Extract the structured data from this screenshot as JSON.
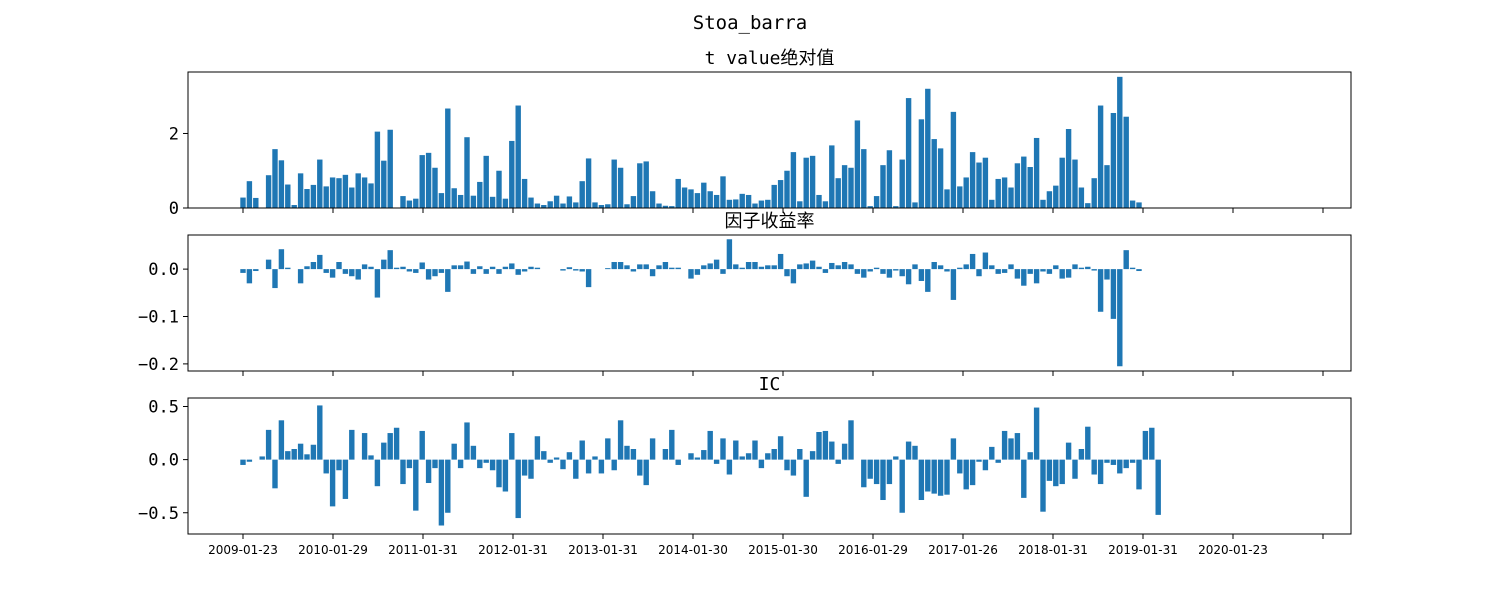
{
  "figure_title": "Stoa_barra",
  "bar_color": "#1f77b4",
  "chart_data": [
    {
      "type": "bar",
      "title": "t value绝对值",
      "xlabel": "",
      "ylabel": "",
      "ylim": [
        0,
        3.65
      ],
      "yticks": [
        0,
        2
      ],
      "yticklabels": [
        "0",
        "2"
      ],
      "values": [
        0.28,
        0.72,
        0.27,
        0.01,
        0.88,
        1.58,
        1.28,
        0.63,
        0.08,
        0.93,
        0.51,
        0.62,
        1.3,
        0.58,
        0.82,
        0.8,
        0.89,
        0.55,
        0.93,
        0.82,
        0.66,
        2.05,
        1.27,
        2.1,
        0.01,
        0.32,
        0.2,
        0.25,
        1.42,
        1.48,
        1.08,
        0.4,
        2.67,
        0.53,
        0.35,
        1.9,
        0.33,
        0.7,
        1.4,
        0.3,
        1.0,
        0.25,
        1.8,
        2.75,
        0.78,
        0.28,
        0.12,
        0.08,
        0.18,
        0.33,
        0.12,
        0.31,
        0.15,
        0.72,
        1.33,
        0.15,
        0.08,
        0.1,
        1.3,
        1.08,
        0.1,
        0.32,
        1.2,
        1.25,
        0.45,
        0.12,
        0.06,
        0.05,
        0.78,
        0.55,
        0.5,
        0.4,
        0.68,
        0.45,
        0.35,
        0.85,
        0.22,
        0.23,
        0.38,
        0.35,
        0.12,
        0.2,
        0.22,
        0.62,
        0.75,
        1.0,
        1.5,
        0.18,
        1.35,
        1.4,
        0.35,
        0.18,
        1.68,
        0.8,
        1.15,
        1.08,
        2.35,
        1.58,
        0.05,
        0.32,
        1.15,
        1.55,
        0.05,
        1.3,
        2.95,
        0.15,
        2.38,
        3.2,
        1.85,
        1.6,
        0.5,
        2.58,
        0.58,
        0.82,
        1.5,
        1.22,
        1.35,
        0.22,
        0.78,
        0.82,
        0.55,
        1.2,
        1.38,
        1.1,
        1.88,
        0.22,
        0.45,
        0.6,
        1.35,
        2.12,
        1.3,
        0.55,
        0.13,
        0.8,
        2.75,
        1.15,
        2.55,
        3.52,
        2.45,
        0.2,
        0.15
      ]
    },
    {
      "type": "bar",
      "title": "因子收益率",
      "xlabel": "",
      "ylabel": "",
      "ylim": [
        -0.215,
        0.072
      ],
      "yticks": [
        0.0,
        -0.1,
        -0.2
      ],
      "yticklabels": [
        "0.0",
        "−0.1",
        "−0.2"
      ],
      "values": [
        -0.008,
        -0.03,
        -0.004,
        0.0,
        0.02,
        -0.04,
        0.042,
        0.003,
        0.0,
        -0.03,
        0.006,
        0.015,
        0.03,
        -0.008,
        -0.018,
        0.015,
        -0.01,
        -0.015,
        -0.022,
        0.01,
        0.005,
        -0.06,
        0.02,
        0.04,
        0.003,
        0.005,
        -0.005,
        -0.008,
        0.014,
        -0.022,
        -0.015,
        -0.008,
        -0.048,
        0.008,
        0.008,
        0.016,
        -0.01,
        0.006,
        -0.01,
        0.005,
        -0.01,
        0.005,
        0.012,
        -0.012,
        -0.005,
        0.005,
        0.003,
        0.0,
        0.0,
        0.0,
        -0.003,
        0.004,
        -0.003,
        -0.005,
        -0.038,
        0.0,
        0.0,
        0.002,
        0.015,
        0.015,
        0.008,
        -0.005,
        0.01,
        0.01,
        -0.015,
        0.008,
        0.015,
        0.003,
        0.003,
        0.0,
        -0.02,
        -0.012,
        0.008,
        0.012,
        0.02,
        -0.01,
        0.063,
        0.01,
        0.003,
        0.015,
        0.015,
        0.005,
        0.008,
        0.008,
        0.032,
        -0.015,
        -0.03,
        0.01,
        0.012,
        0.018,
        0.005,
        -0.008,
        0.013,
        0.008,
        0.015,
        0.01,
        -0.01,
        -0.018,
        -0.005,
        0.003,
        -0.01,
        -0.018,
        -0.003,
        -0.015,
        -0.032,
        0.01,
        -0.025,
        -0.048,
        0.015,
        0.008,
        -0.005,
        -0.065,
        0.003,
        0.01,
        0.032,
        -0.015,
        0.035,
        0.008,
        -0.01,
        -0.008,
        0.01,
        -0.02,
        -0.035,
        -0.01,
        -0.03,
        -0.005,
        -0.01,
        0.008,
        -0.02,
        -0.018,
        0.01,
        0.003,
        0.005,
        -0.003,
        -0.09,
        -0.022,
        -0.105,
        -0.205,
        0.04,
        0.003,
        -0.004
      ]
    },
    {
      "type": "bar",
      "title": "IC",
      "xlabel": "",
      "ylabel": "",
      "ylim": [
        -0.7,
        0.58
      ],
      "yticks": [
        0.5,
        0.0,
        -0.5
      ],
      "yticklabels": [
        "0.5",
        "0.0",
        "−0.5"
      ],
      "values": [
        -0.05,
        -0.02,
        0.0,
        0.03,
        0.28,
        -0.27,
        0.37,
        0.08,
        0.1,
        0.15,
        0.05,
        0.14,
        0.51,
        -0.13,
        -0.44,
        -0.1,
        -0.37,
        0.28,
        0.0,
        0.25,
        0.04,
        -0.25,
        0.16,
        0.25,
        0.3,
        -0.23,
        -0.08,
        -0.48,
        0.27,
        -0.22,
        -0.08,
        -0.62,
        -0.5,
        0.15,
        -0.08,
        0.35,
        0.13,
        -0.08,
        -0.03,
        -0.1,
        -0.26,
        -0.3,
        0.25,
        -0.55,
        -0.15,
        -0.18,
        0.22,
        0.08,
        -0.03,
        0.02,
        -0.09,
        0.07,
        -0.18,
        0.18,
        -0.13,
        0.03,
        -0.13,
        0.2,
        -0.1,
        0.37,
        0.13,
        0.1,
        -0.15,
        -0.24,
        0.2,
        0.0,
        0.1,
        0.28,
        -0.05,
        0.0,
        0.06,
        0.02,
        0.09,
        0.27,
        -0.04,
        0.2,
        -0.14,
        0.18,
        0.03,
        0.06,
        0.18,
        -0.08,
        0.06,
        0.1,
        0.22,
        -0.1,
        -0.15,
        0.1,
        -0.35,
        0.08,
        0.26,
        0.27,
        0.17,
        -0.04,
        0.15,
        0.37,
        0.0,
        -0.26,
        -0.18,
        -0.23,
        -0.38,
        -0.23,
        0.03,
        -0.5,
        0.17,
        0.13,
        -0.38,
        -0.3,
        -0.32,
        -0.34,
        -0.33,
        0.2,
        -0.13,
        -0.28,
        -0.24,
        -0.02,
        -0.1,
        0.12,
        -0.03,
        0.27,
        0.2,
        0.25,
        -0.36,
        0.07,
        0.49,
        -0.49,
        -0.2,
        -0.25,
        -0.23,
        0.16,
        -0.18,
        0.1,
        0.31,
        -0.14,
        -0.23,
        -0.03,
        -0.05,
        -0.13,
        -0.08,
        -0.03,
        -0.28,
        0.27,
        0.3,
        -0.52
      ]
    }
  ],
  "x_axis": {
    "tick_labels": [
      "2009-01-23",
      "2010-01-29",
      "2011-01-31",
      "2012-01-31",
      "2013-01-31",
      "2014-01-30",
      "2015-01-30",
      "2016-01-29",
      "2017-01-26",
      "2018-01-31",
      "2019-01-31",
      "2020-01-23",
      ""
    ]
  }
}
